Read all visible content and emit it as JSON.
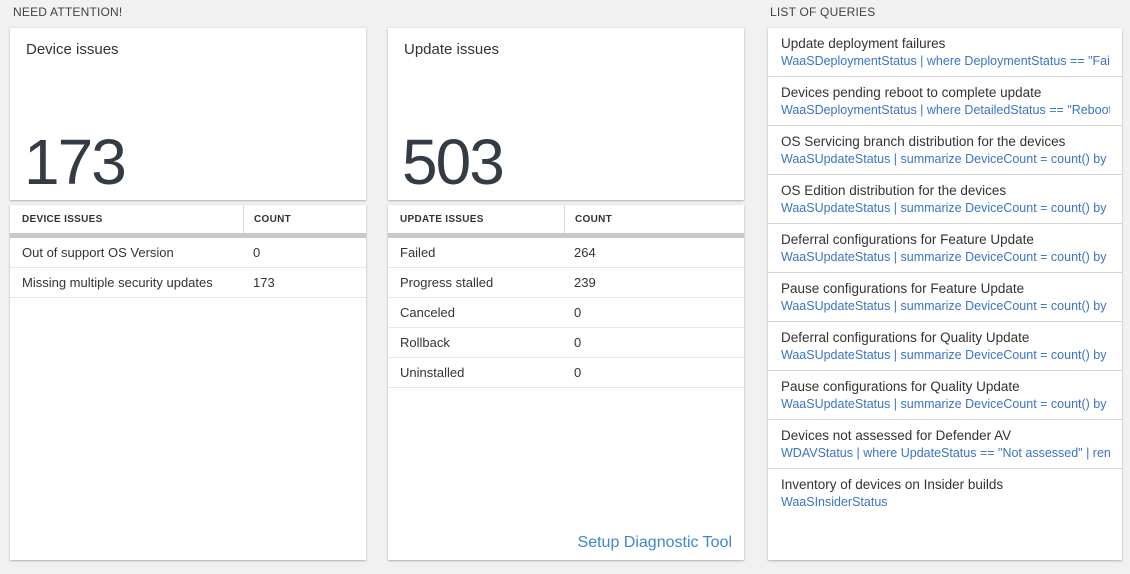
{
  "page": {
    "need_attention_label": "NEED ATTENTION!",
    "list_of_queries_label": "LIST OF QUERIES"
  },
  "device_issues": {
    "card_title": "Device issues",
    "total": "173",
    "table": {
      "col_issue": "DEVICE ISSUES",
      "col_count": "COUNT",
      "rows": [
        {
          "label": "Out of support OS Version",
          "count": "0"
        },
        {
          "label": "Missing multiple security updates",
          "count": "173"
        }
      ]
    }
  },
  "update_issues": {
    "card_title": "Update issues",
    "total": "503",
    "table": {
      "col_issue": "UPDATE ISSUES",
      "col_count": "COUNT",
      "rows": [
        {
          "label": "Failed",
          "count": "264"
        },
        {
          "label": "Progress stalled",
          "count": "239"
        },
        {
          "label": "Canceled",
          "count": "0"
        },
        {
          "label": "Rollback",
          "count": "0"
        },
        {
          "label": "Uninstalled",
          "count": "0"
        }
      ]
    },
    "setup_link": "Setup Diagnostic Tool"
  },
  "queries": {
    "items": [
      {
        "title": "Update deployment failures",
        "query": "WaaSDeploymentStatus | where DeploymentStatus == \"Failed\" |…"
      },
      {
        "title": "Devices pending reboot to complete update",
        "query": "WaaSDeploymentStatus | where DetailedStatus == \"Reboot pend…"
      },
      {
        "title": "OS Servicing branch distribution for the devices",
        "query": "WaaSUpdateStatus | summarize DeviceCount = count() by OSSer…"
      },
      {
        "title": "OS Edition distribution for the devices",
        "query": "WaaSUpdateStatus | summarize DeviceCount = count() by OSEdit…"
      },
      {
        "title": "Deferral configurations for Feature Update",
        "query": "WaaSUpdateStatus | summarize DeviceCount = count() by Featur…"
      },
      {
        "title": "Pause configurations for Feature Update",
        "query": "WaaSUpdateStatus | summarize DeviceCount = count() by Featur…"
      },
      {
        "title": "Deferral configurations for Quality Update",
        "query": "WaaSUpdateStatus | summarize DeviceCount = count() by Qualit…"
      },
      {
        "title": "Pause configurations for Quality Update",
        "query": "WaaSUpdateStatus | summarize DeviceCount = count() by Qualit…"
      },
      {
        "title": "Devices not assessed for Defender AV",
        "query": "WDAVStatus | where UpdateStatus == \"Not assessed\" | render ta…"
      },
      {
        "title": "Inventory of devices on Insider builds",
        "query": "WaaSInsiderStatus"
      }
    ]
  },
  "colors": {
    "query_link_blue": "#3a74c4",
    "setup_link_blue": "#3e86d3",
    "big_number_dark": "#333b45"
  }
}
